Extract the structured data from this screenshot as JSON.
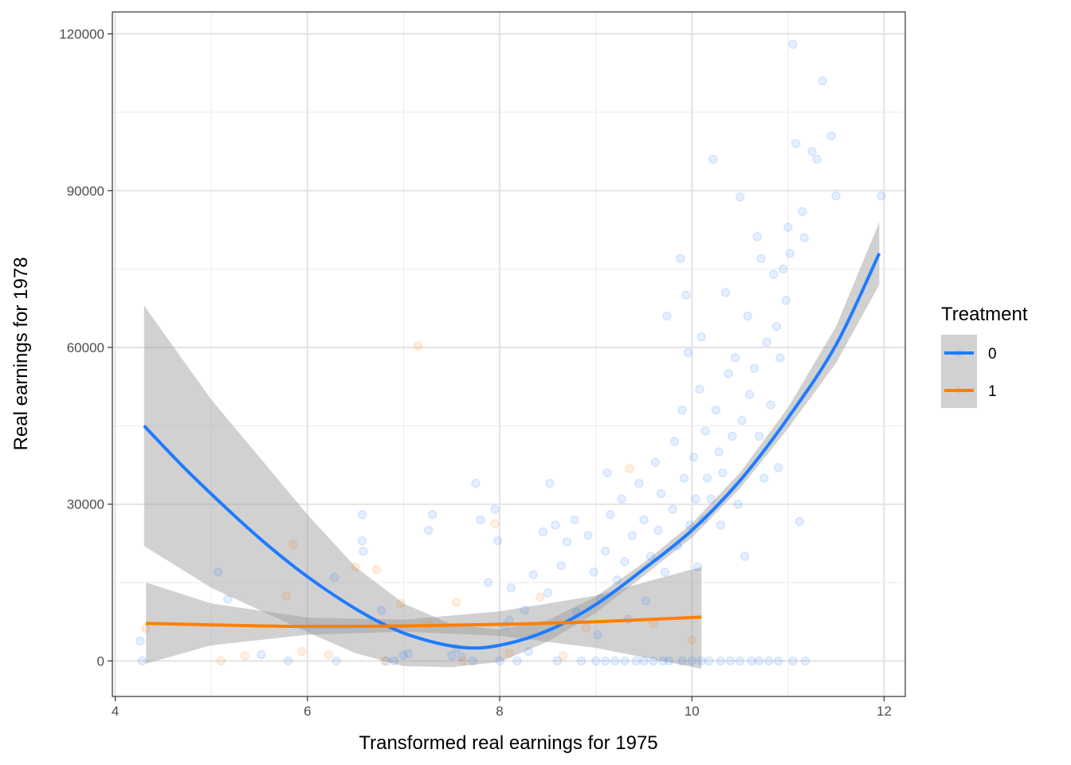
{
  "chart_data": {
    "type": "scatter",
    "xlabel": "Transformed real earnings for 1975",
    "ylabel": "Real earnings for 1978",
    "xlim": [
      3.97,
      12.22
    ],
    "ylim": [
      -6800,
      124200
    ],
    "x_ticks": [
      4,
      6,
      8,
      10,
      12
    ],
    "y_ticks": [
      0,
      30000,
      60000,
      90000,
      120000
    ],
    "x_tick_labels": [
      "4",
      "6",
      "8",
      "10",
      "12"
    ],
    "y_tick_labels": [
      "0",
      "30000",
      "60000",
      "90000",
      "120000"
    ],
    "grid": true,
    "legend": {
      "title": "Treatment",
      "position": "right",
      "entries": [
        {
          "label": "0",
          "color": "#1e7bff"
        },
        {
          "label": "1",
          "color": "#ff7f00"
        }
      ]
    },
    "series": [
      {
        "name": "0",
        "color": "#1e7bff",
        "marker_alpha": 0.12,
        "fit": "quadratic smooth with 95% confidence band",
        "smooth": [
          [
            4.3,
            45000
          ],
          [
            4.7,
            37300
          ],
          [
            5.1,
            30200
          ],
          [
            5.5,
            23500
          ],
          [
            5.9,
            17500
          ],
          [
            6.3,
            12300
          ],
          [
            6.7,
            7900
          ],
          [
            7.1,
            4700
          ],
          [
            7.6,
            2600
          ],
          [
            8.0,
            3000
          ],
          [
            8.5,
            5800
          ],
          [
            9.0,
            10800
          ],
          [
            9.5,
            17600
          ],
          [
            10.0,
            25000
          ],
          [
            10.5,
            34500
          ],
          [
            11.0,
            46500
          ],
          [
            11.5,
            60500
          ],
          [
            11.95,
            78000
          ]
        ],
        "band_upper": [
          [
            4.3,
            68000
          ],
          [
            5.0,
            50000
          ],
          [
            6.0,
            28000
          ],
          [
            6.5,
            18000
          ],
          [
            7.0,
            11000
          ],
          [
            7.5,
            7000
          ],
          [
            8.0,
            6000
          ],
          [
            8.5,
            7800
          ],
          [
            9.0,
            12300
          ],
          [
            9.5,
            18800
          ],
          [
            10.0,
            26300
          ],
          [
            10.5,
            36000
          ],
          [
            11.0,
            48500
          ],
          [
            11.5,
            64000
          ],
          [
            11.95,
            84000
          ]
        ],
        "band_lower": [
          [
            4.3,
            22000
          ],
          [
            5.0,
            14000
          ],
          [
            6.0,
            5500
          ],
          [
            6.5,
            1500
          ],
          [
            7.0,
            -1000
          ],
          [
            7.5,
            -1200
          ],
          [
            8.0,
            -200
          ],
          [
            8.5,
            3700
          ],
          [
            9.0,
            9200
          ],
          [
            9.5,
            16300
          ],
          [
            10.0,
            23600
          ],
          [
            10.5,
            33000
          ],
          [
            11.0,
            44500
          ],
          [
            11.5,
            57000
          ],
          [
            11.95,
            72000
          ]
        ],
        "points": [
          [
            4.28,
            0
          ],
          [
            4.26,
            3800
          ],
          [
            5.07,
            17000
          ],
          [
            5.17,
            11800
          ],
          [
            5.52,
            1200
          ],
          [
            5.8,
            0
          ],
          [
            6.28,
            16000
          ],
          [
            6.3,
            0
          ],
          [
            6.57,
            28000
          ],
          [
            6.57,
            23000
          ],
          [
            6.58,
            21000
          ],
          [
            6.77,
            9700
          ],
          [
            6.82,
            0
          ],
          [
            6.9,
            0
          ],
          [
            7.0,
            1100
          ],
          [
            7.05,
            1400
          ],
          [
            7.26,
            25000
          ],
          [
            7.3,
            28000
          ],
          [
            7.5,
            1000
          ],
          [
            7.55,
            2400
          ],
          [
            7.6,
            800
          ],
          [
            7.72,
            0
          ],
          [
            7.75,
            34000
          ],
          [
            7.8,
            27000
          ],
          [
            7.88,
            15000
          ],
          [
            7.95,
            29000
          ],
          [
            7.98,
            23000
          ],
          [
            8.0,
            0
          ],
          [
            8.05,
            6700
          ],
          [
            8.1,
            7800
          ],
          [
            8.12,
            14000
          ],
          [
            8.18,
            0
          ],
          [
            8.26,
            9700
          ],
          [
            8.3,
            1800
          ],
          [
            8.35,
            16500
          ],
          [
            8.45,
            24700
          ],
          [
            8.5,
            13000
          ],
          [
            8.52,
            34000
          ],
          [
            8.58,
            26000
          ],
          [
            8.6,
            0
          ],
          [
            8.64,
            18200
          ],
          [
            8.7,
            22800
          ],
          [
            8.78,
            27000
          ],
          [
            8.8,
            9300
          ],
          [
            8.85,
            0
          ],
          [
            8.92,
            24000
          ],
          [
            8.98,
            17000
          ],
          [
            9.02,
            5000
          ],
          [
            9.05,
            12000
          ],
          [
            9.1,
            21000
          ],
          [
            9.12,
            36000
          ],
          [
            9.15,
            28000
          ],
          [
            9.2,
            0
          ],
          [
            9.22,
            15500
          ],
          [
            9.27,
            31000
          ],
          [
            9.3,
            19000
          ],
          [
            9.34,
            8000
          ],
          [
            9.38,
            24000
          ],
          [
            9.42,
            0
          ],
          [
            9.45,
            34000
          ],
          [
            9.5,
            27000
          ],
          [
            9.52,
            11500
          ],
          [
            9.57,
            20000
          ],
          [
            9.6,
            0
          ],
          [
            9.62,
            38000
          ],
          [
            9.65,
            25000
          ],
          [
            9.68,
            32000
          ],
          [
            9.72,
            17000
          ],
          [
            9.74,
            66000
          ],
          [
            9.76,
            0
          ],
          [
            9.8,
            29000
          ],
          [
            9.82,
            42000
          ],
          [
            9.85,
            22000
          ],
          [
            9.88,
            77000
          ],
          [
            9.9,
            48000
          ],
          [
            9.92,
            35000
          ],
          [
            9.94,
            70000
          ],
          [
            9.96,
            59000
          ],
          [
            9.98,
            26000
          ],
          [
            10.0,
            0
          ],
          [
            10.02,
            39000
          ],
          [
            10.04,
            31000
          ],
          [
            10.06,
            18000
          ],
          [
            10.08,
            52000
          ],
          [
            10.1,
            62000
          ],
          [
            10.12,
            27000
          ],
          [
            10.14,
            44000
          ],
          [
            10.16,
            35000
          ],
          [
            10.18,
            0
          ],
          [
            10.2,
            31000
          ],
          [
            10.22,
            96000
          ],
          [
            10.25,
            48000
          ],
          [
            10.28,
            40000
          ],
          [
            10.3,
            26000
          ],
          [
            10.32,
            36000
          ],
          [
            10.35,
            70500
          ],
          [
            10.38,
            55000
          ],
          [
            10.4,
            0
          ],
          [
            10.42,
            43000
          ],
          [
            10.45,
            58000
          ],
          [
            10.48,
            30000
          ],
          [
            10.5,
            88800
          ],
          [
            10.52,
            46000
          ],
          [
            10.55,
            20000
          ],
          [
            10.58,
            66000
          ],
          [
            10.6,
            51000
          ],
          [
            10.62,
            0
          ],
          [
            10.65,
            56000
          ],
          [
            10.68,
            81200
          ],
          [
            10.7,
            43000
          ],
          [
            10.72,
            77000
          ],
          [
            10.75,
            35000
          ],
          [
            10.78,
            61000
          ],
          [
            10.8,
            0
          ],
          [
            10.82,
            49000
          ],
          [
            10.85,
            74000
          ],
          [
            10.88,
            64000
          ],
          [
            10.9,
            37000
          ],
          [
            10.92,
            58000
          ],
          [
            10.95,
            75000
          ],
          [
            10.98,
            69000
          ],
          [
            11.0,
            83000
          ],
          [
            11.02,
            78000
          ],
          [
            11.05,
            118000
          ],
          [
            11.08,
            99000
          ],
          [
            11.12,
            26700
          ],
          [
            11.15,
            86000
          ],
          [
            11.17,
            81000
          ],
          [
            11.25,
            97500
          ],
          [
            11.3,
            96000
          ],
          [
            11.36,
            111000
          ],
          [
            11.45,
            100500
          ],
          [
            11.5,
            89000
          ],
          [
            11.97,
            89000
          ],
          [
            9.0,
            0
          ],
          [
            9.1,
            0
          ],
          [
            9.3,
            0
          ],
          [
            9.5,
            0
          ],
          [
            9.7,
            0
          ],
          [
            9.9,
            0
          ],
          [
            10.1,
            0
          ],
          [
            10.3,
            0
          ],
          [
            10.5,
            0
          ],
          [
            10.7,
            0
          ],
          [
            10.9,
            0
          ],
          [
            11.05,
            0
          ],
          [
            11.18,
            0
          ]
        ]
      },
      {
        "name": "1",
        "color": "#ff7f00",
        "marker_alpha": 0.12,
        "fit": "quadratic smooth with 95% confidence band",
        "smooth": [
          [
            4.32,
            7200
          ],
          [
            5.0,
            6900
          ],
          [
            6.0,
            6600
          ],
          [
            7.0,
            6700
          ],
          [
            8.0,
            7000
          ],
          [
            9.0,
            7500
          ],
          [
            10.1,
            8400
          ]
        ],
        "band_upper": [
          [
            4.32,
            15000
          ],
          [
            5.0,
            11000
          ],
          [
            6.0,
            8300
          ],
          [
            7.0,
            7900
          ],
          [
            8.0,
            9500
          ],
          [
            9.0,
            12500
          ],
          [
            10.1,
            18000
          ]
        ],
        "band_lower": [
          [
            4.32,
            -500
          ],
          [
            5.0,
            3000
          ],
          [
            6.0,
            5000
          ],
          [
            6.5,
            5300
          ],
          [
            7.0,
            5600
          ],
          [
            8.0,
            4800
          ],
          [
            9.0,
            2500
          ],
          [
            10.1,
            -1500
          ]
        ],
        "points": [
          [
            4.32,
            6200
          ],
          [
            5.1,
            0
          ],
          [
            5.35,
            1000
          ],
          [
            5.78,
            12500
          ],
          [
            5.85,
            22300
          ],
          [
            5.94,
            1800
          ],
          [
            6.22,
            1200
          ],
          [
            6.5,
            18000
          ],
          [
            6.72,
            17500
          ],
          [
            6.8,
            0
          ],
          [
            6.97,
            11000
          ],
          [
            7.15,
            60300
          ],
          [
            7.26,
            7000
          ],
          [
            7.55,
            11200
          ],
          [
            7.62,
            0
          ],
          [
            7.95,
            26300
          ],
          [
            8.1,
            1500
          ],
          [
            8.42,
            12200
          ],
          [
            8.66,
            1000
          ],
          [
            8.9,
            6400
          ],
          [
            9.35,
            36800
          ],
          [
            9.6,
            7200
          ],
          [
            10.0,
            4000
          ]
        ]
      }
    ]
  }
}
